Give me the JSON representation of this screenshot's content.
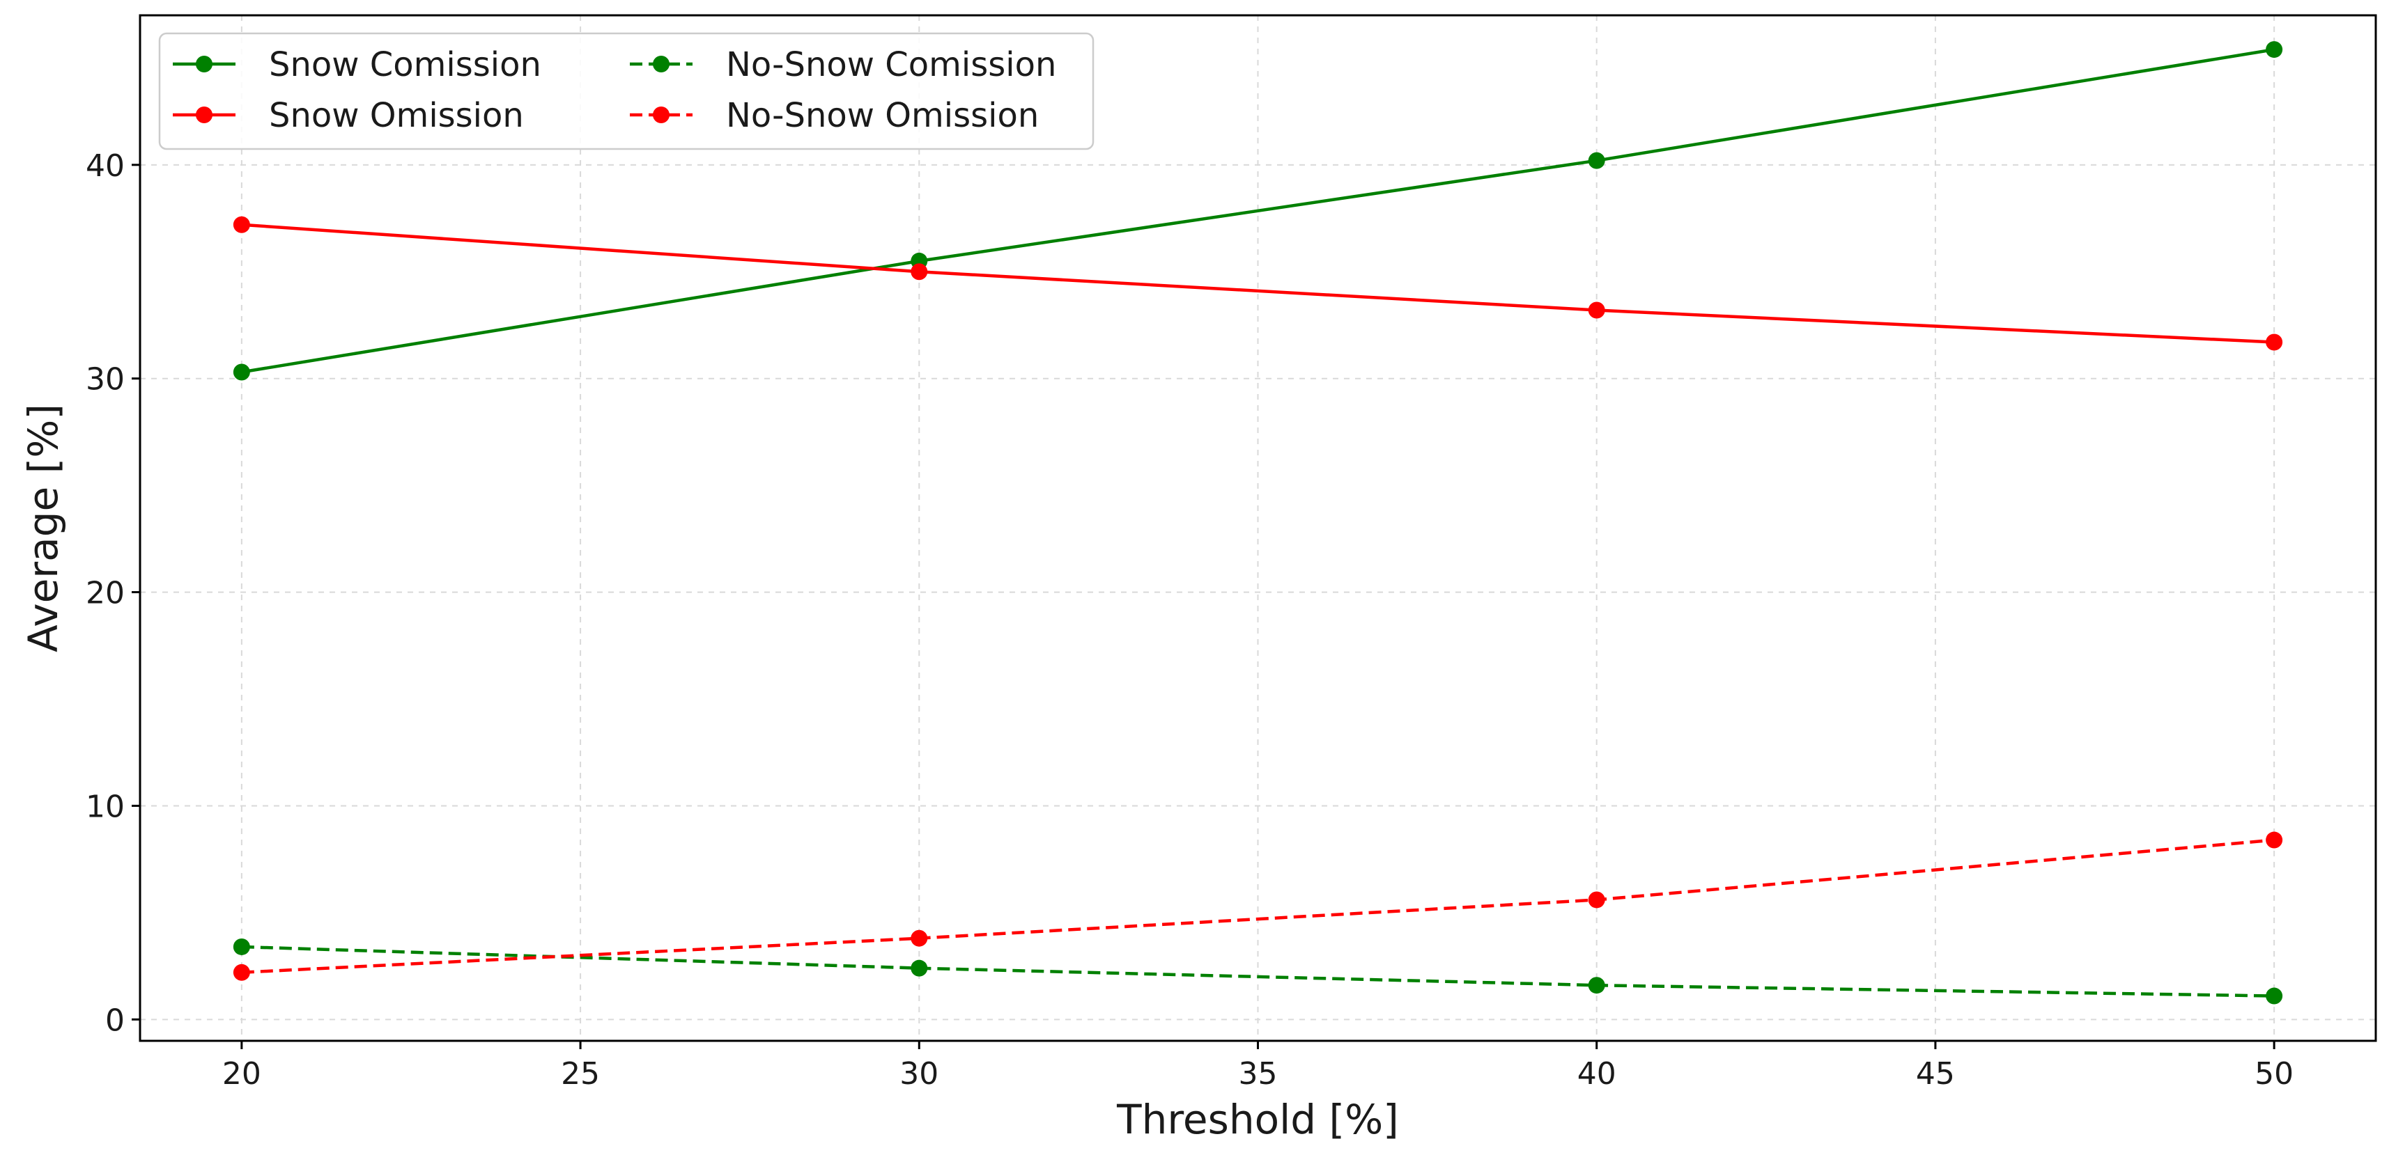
{
  "chart_data": {
    "type": "line",
    "title": "",
    "xlabel": "Threshold [%]",
    "ylabel": "Average [%]",
    "xlim": [
      18.5,
      51.5
    ],
    "ylim": [
      -1,
      47
    ],
    "xticks": [
      20,
      25,
      30,
      35,
      40,
      45,
      50
    ],
    "yticks": [
      0,
      10,
      20,
      30,
      40
    ],
    "x": [
      20,
      30,
      40,
      50
    ],
    "grid": true,
    "legend_position": "top-left",
    "series": [
      {
        "name": "Snow Comission",
        "values": [
          30.3,
          35.5,
          40.2,
          45.4
        ],
        "color": "#008000",
        "style": "solid"
      },
      {
        "name": "Snow Omission",
        "values": [
          37.2,
          35.0,
          33.2,
          31.7
        ],
        "color": "#ff0000",
        "style": "solid"
      },
      {
        "name": "No-Snow Comission",
        "values": [
          3.4,
          2.4,
          1.6,
          1.1
        ],
        "color": "#008000",
        "style": "dashed"
      },
      {
        "name": "No-Snow Omission",
        "values": [
          2.2,
          3.8,
          5.6,
          8.4
        ],
        "color": "#ff0000",
        "style": "dashed"
      }
    ]
  }
}
